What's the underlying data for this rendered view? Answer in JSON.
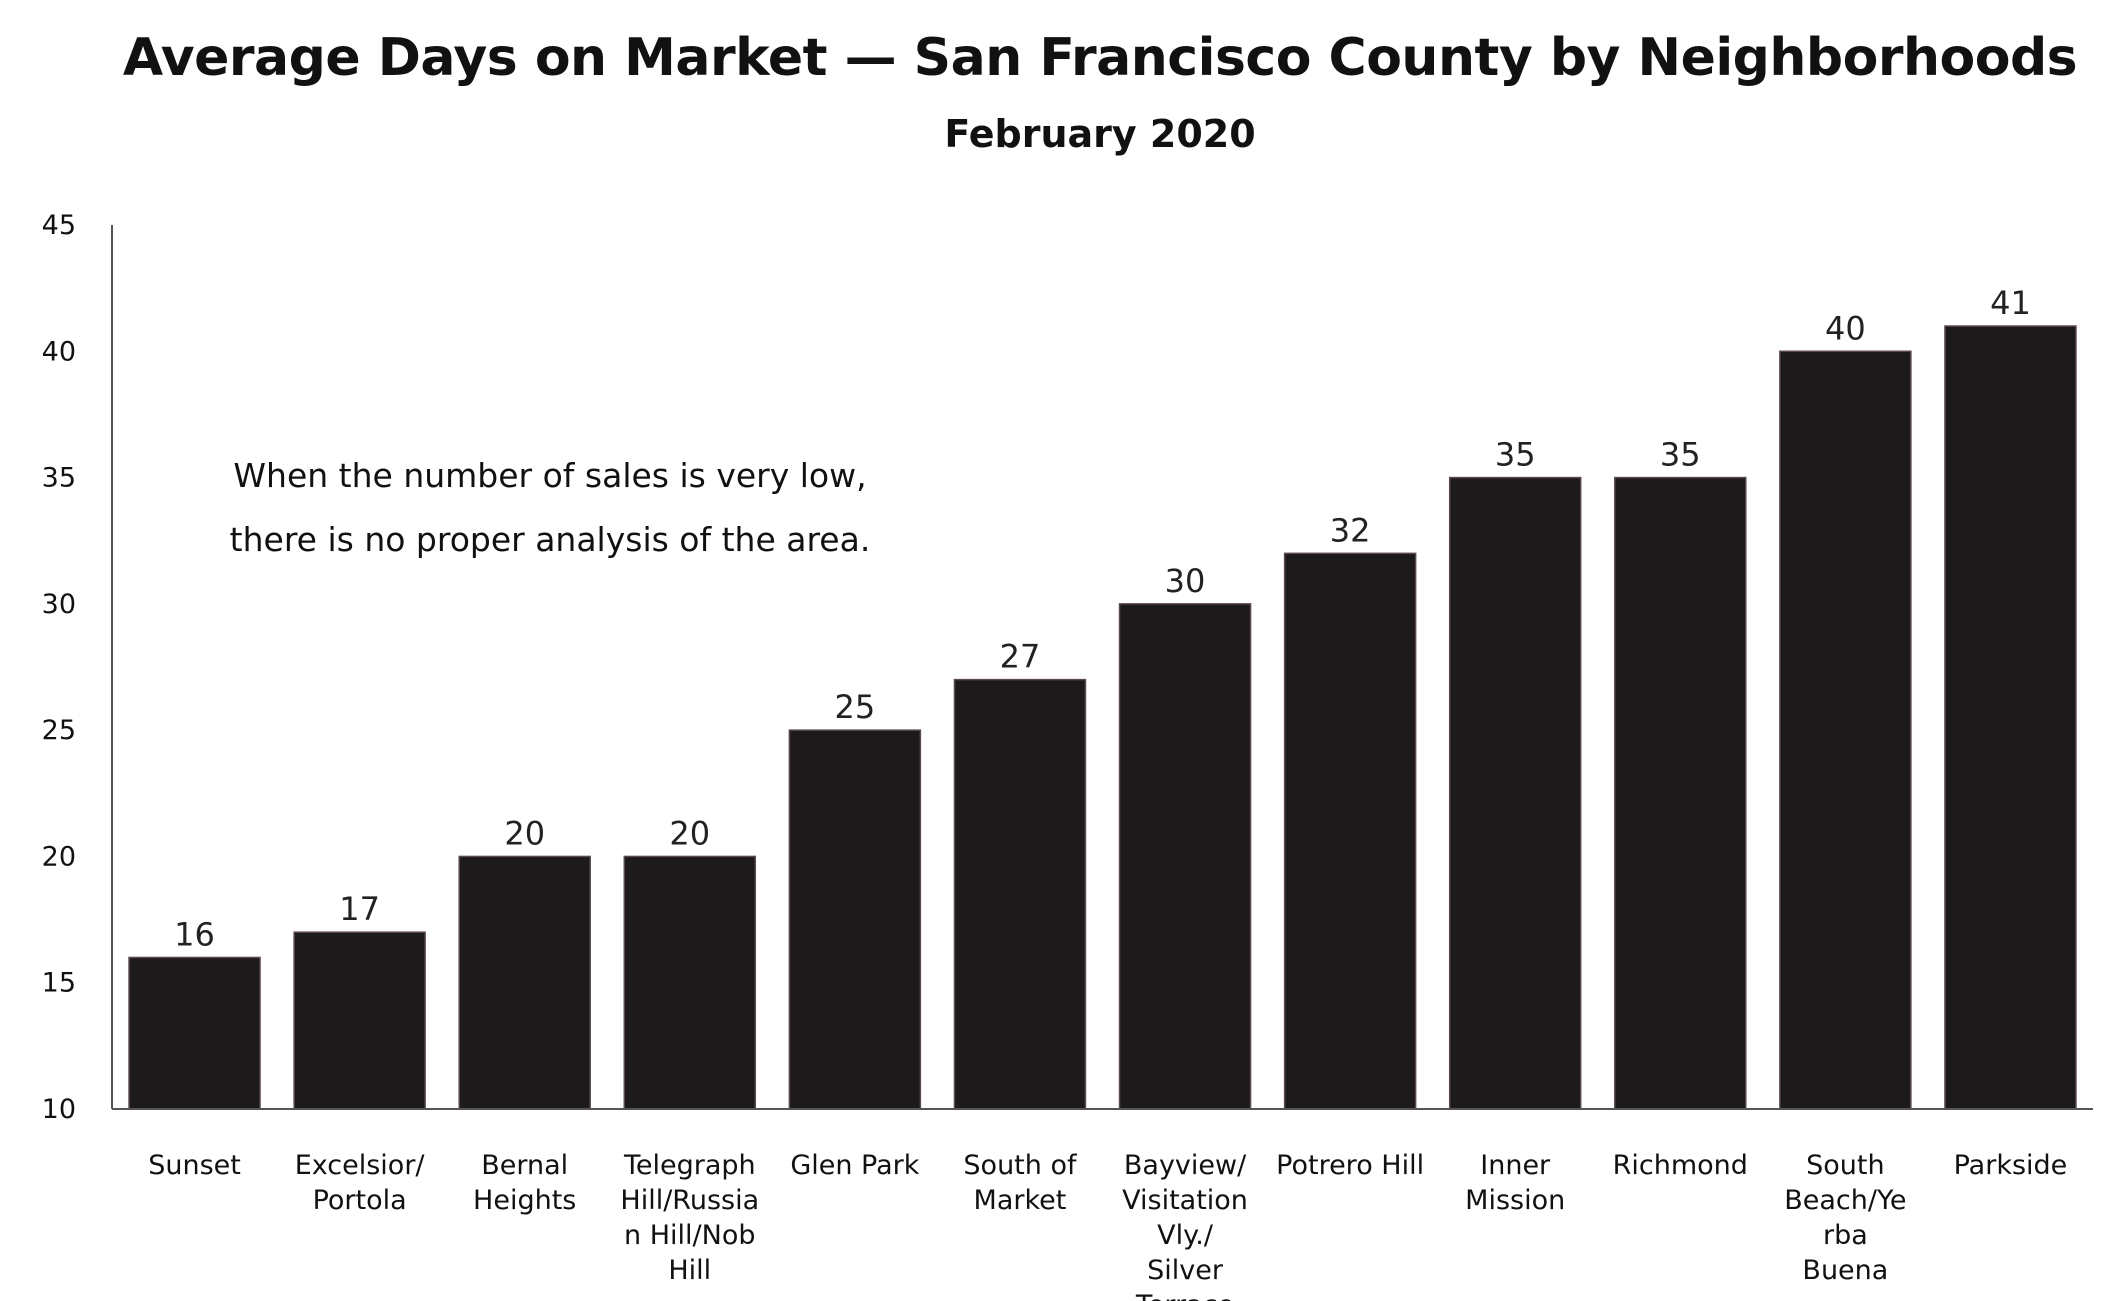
{
  "chart_data": {
    "type": "bar",
    "title": "Average Days on Market — San Francisco County by Neighborhoods",
    "subtitle": "February 2020",
    "xlabel": "",
    "ylabel": "",
    "ylim": [
      10,
      45
    ],
    "yticks": [
      10,
      15,
      20,
      25,
      30,
      35,
      40,
      45
    ],
    "grid": false,
    "categories": [
      [
        "Sunset"
      ],
      [
        "Excelsior/",
        "Portola"
      ],
      [
        "Bernal",
        "Heights"
      ],
      [
        "Telegraph",
        "Hill/Russia",
        "n Hill/Nob",
        "Hill"
      ],
      [
        "Glen Park"
      ],
      [
        "South of",
        "Market"
      ],
      [
        "Bayview/",
        "Visitation",
        "Vly./",
        "Silver",
        "Terrace"
      ],
      [
        "Potrero Hill"
      ],
      [
        "Inner",
        "Mission"
      ],
      [
        "Richmond"
      ],
      [
        "South",
        "Beach/Ye",
        "rba",
        "Buena"
      ],
      [
        "Parkside"
      ]
    ],
    "values": [
      16,
      17,
      20,
      20,
      25,
      27,
      30,
      32,
      35,
      35,
      40,
      41
    ],
    "bar_color": "#1c1a1a",
    "annotation": [
      "When the number of sales is very low,",
      "there is no proper analysis of the area."
    ]
  }
}
